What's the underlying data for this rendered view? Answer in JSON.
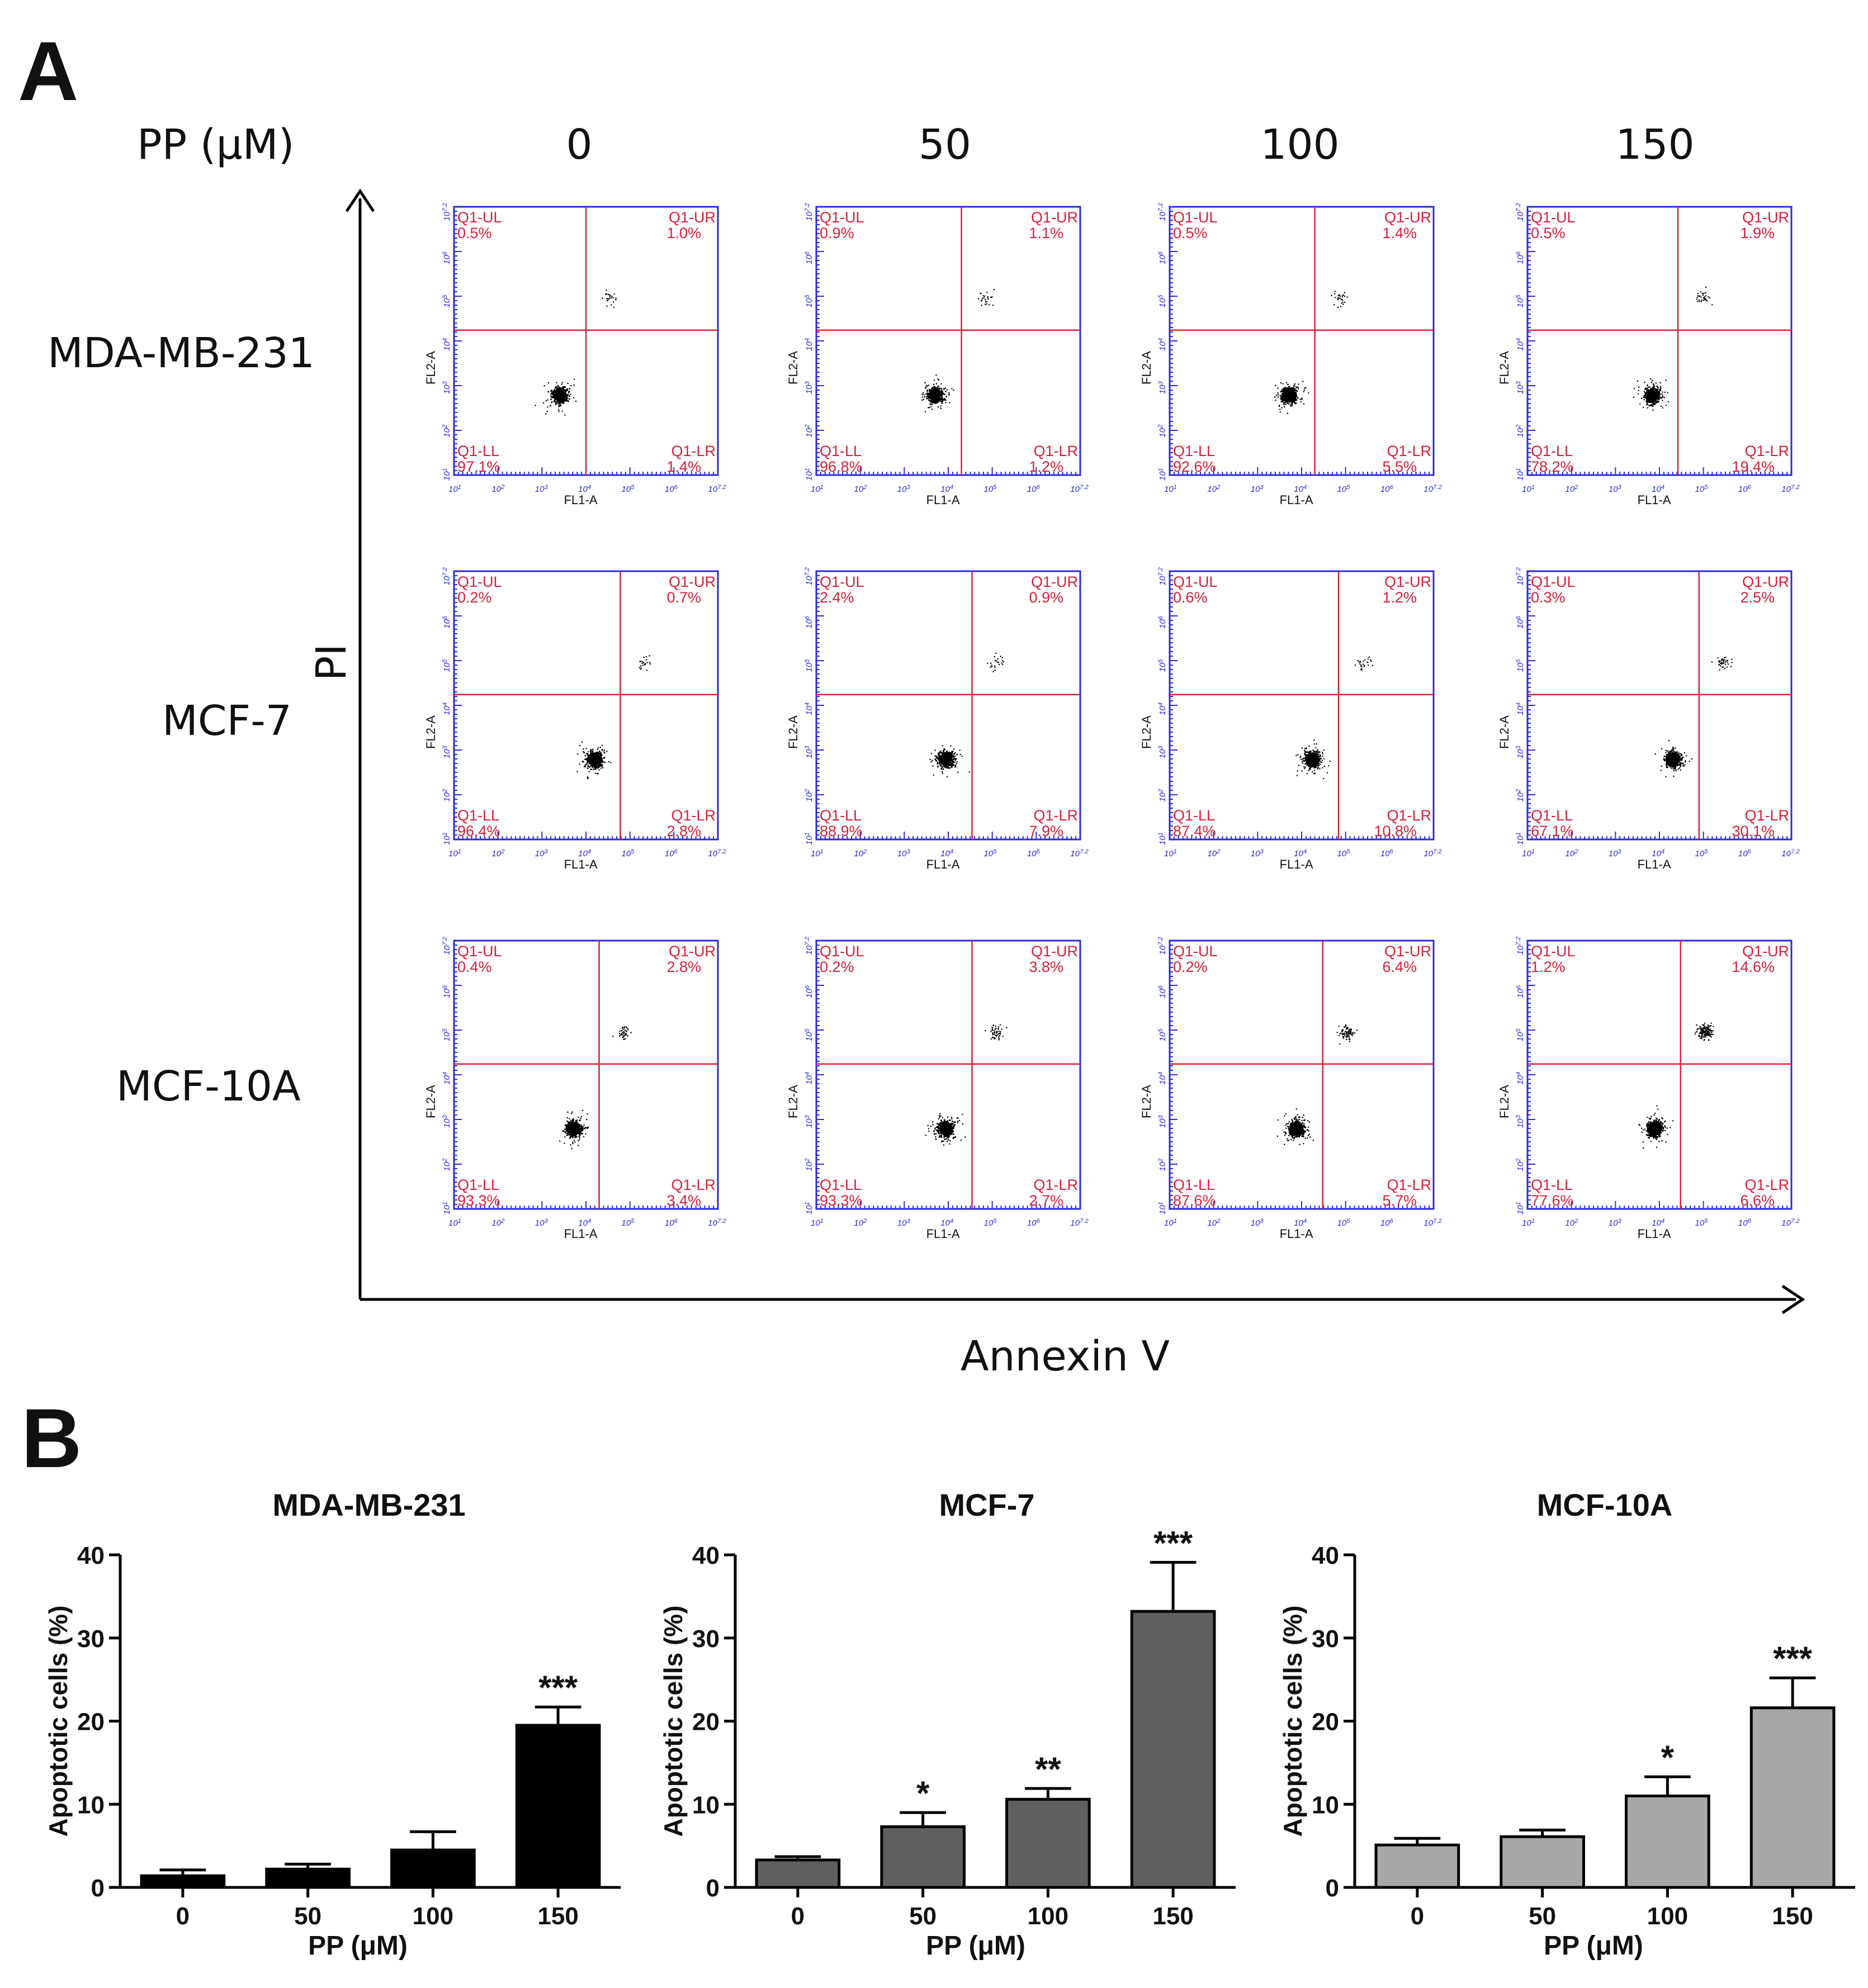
{
  "panel_a": {
    "letter": "A",
    "concentration_label": "PP (μM)",
    "concentrations": [
      "0",
      "50",
      "100",
      "150"
    ],
    "cell_lines": [
      "MDA-MB-231",
      "MCF-7",
      "MCF-10A"
    ],
    "y_axis_label": "PI",
    "x_axis_label": "Annexin V",
    "plot_x_title": "FL1-A",
    "plot_y_title": "FL2-A",
    "x_ticks": [
      "10^1",
      "10^2",
      "10^3",
      "10^4",
      "10^5",
      "10^6",
      "10^7.2"
    ],
    "y_ticks": [
      "10^1",
      "10^2",
      "10^3",
      "10^4",
      "10^5",
      "10^6",
      "10^7.2"
    ],
    "quadrant_names": [
      "Q1-UL",
      "Q1-UR",
      "Q1-LL",
      "Q1-LR"
    ],
    "colors": {
      "quadrant": "#d8203a",
      "frame": "#2a2adc",
      "dots": "#000000"
    },
    "plots": [
      [
        {
          "UL": "0.5%",
          "UR": "1.0%",
          "LL": "97.1%",
          "LR": "1.4%"
        },
        {
          "UL": "0.9%",
          "UR": "1.1%",
          "LL": "96.8%",
          "LR": "1.2%"
        },
        {
          "UL": "0.5%",
          "UR": "1.4%",
          "LL": "92.6%",
          "LR": "5.5%"
        },
        {
          "UL": "0.5%",
          "UR": "1.9%",
          "LL": "78.2%",
          "LR": "19.4%"
        }
      ],
      [
        {
          "UL": "0.2%",
          "UR": "0.7%",
          "LL": "96.4%",
          "LR": "2.8%"
        },
        {
          "UL": "2.4%",
          "UR": "0.9%",
          "LL": "88.9%",
          "LR": "7.9%"
        },
        {
          "UL": "0.6%",
          "UR": "1.2%",
          "LL": "87.4%",
          "LR": "10.8%"
        },
        {
          "UL": "0.3%",
          "UR": "2.5%",
          "LL": "67.1%",
          "LR": "30.1%"
        }
      ],
      [
        {
          "UL": "0.4%",
          "UR": "2.8%",
          "LL": "93.3%",
          "LR": "3.4%"
        },
        {
          "UL": "0.2%",
          "UR": "3.8%",
          "LL": "93.3%",
          "LR": "2.7%"
        },
        {
          "UL": "0.2%",
          "UR": "6.4%",
          "LL": "87.6%",
          "LR": "5.7%"
        },
        {
          "UL": "1.2%",
          "UR": "14.6%",
          "LL": "77.6%",
          "LR": "6.6%"
        }
      ]
    ]
  },
  "panel_b": {
    "letter": "B"
  },
  "chart_data": [
    {
      "type": "bar",
      "title": "MDA-MB-231",
      "xlabel": "PP (μM)",
      "ylabel": "Apoptotic cells (%)",
      "categories": [
        "0",
        "50",
        "100",
        "150"
      ],
      "values": [
        1.4,
        2.2,
        4.5,
        19.5
      ],
      "errors": [
        0.7,
        0.6,
        2.2,
        2.2
      ],
      "significance": [
        "",
        "",
        "",
        "***"
      ],
      "ylim": [
        0,
        40
      ],
      "yticks": [
        0,
        10,
        20,
        30,
        40
      ],
      "bar_color": "#000000"
    },
    {
      "type": "bar",
      "title": "MCF-7",
      "xlabel": "PP (μM)",
      "ylabel": "Apoptotic cells (%)",
      "categories": [
        "0",
        "50",
        "100",
        "150"
      ],
      "values": [
        3.3,
        7.3,
        10.6,
        33.2
      ],
      "errors": [
        0.4,
        1.7,
        1.3,
        5.9
      ],
      "significance": [
        "",
        "*",
        "**",
        "***"
      ],
      "ylim": [
        0,
        40
      ],
      "yticks": [
        0,
        10,
        20,
        30,
        40
      ],
      "bar_color": "#5f5f5f"
    },
    {
      "type": "bar",
      "title": "MCF-10A",
      "xlabel": "PP (μM)",
      "ylabel": "Apoptotic cells (%)",
      "categories": [
        "0",
        "50",
        "100",
        "150"
      ],
      "values": [
        5.1,
        6.1,
        11.0,
        21.6
      ],
      "errors": [
        0.8,
        0.8,
        2.3,
        3.6
      ],
      "significance": [
        "",
        "",
        "*",
        "***"
      ],
      "ylim": [
        0,
        40
      ],
      "yticks": [
        0,
        10,
        20,
        30,
        40
      ],
      "bar_color": "#a7a7a7"
    }
  ]
}
